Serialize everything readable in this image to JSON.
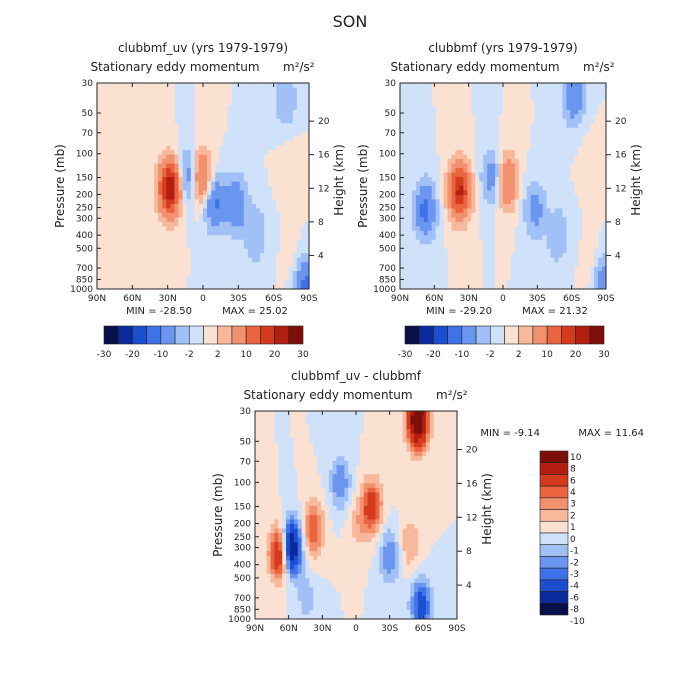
{
  "title": "SON",
  "chart_data": [
    {
      "type": "heatmap",
      "title": "clubbmf_uv (yrs 1979-1979)",
      "subtitle": "Stationary eddy momentum",
      "units": "m²/s²",
      "xlabel": "",
      "ylabel": "Pressure (mb)",
      "ylabel_right": "Height (km)",
      "x_ticks": [
        "90N",
        "60N",
        "30N",
        "0",
        "30S",
        "60S",
        "90S"
      ],
      "y_ticks": [
        "30",
        "50",
        "70",
        "100",
        "150",
        "200",
        "250",
        "300",
        "400",
        "500",
        "700",
        "850",
        "1000"
      ],
      "y_right_ticks": [
        "20",
        "16",
        "12",
        "8",
        "4"
      ],
      "min": -28.5,
      "max": 25.02,
      "min_label": "MIN = -28.50",
      "max_label": "MAX = 25.02",
      "colorbar_levels": [
        -30,
        -25,
        -20,
        -15,
        -10,
        -5,
        -2,
        0,
        2,
        5,
        10,
        15,
        20,
        25,
        30
      ],
      "colorbar_tick_labels": [
        "-30",
        "-20",
        "-10",
        "-2",
        "2",
        "10",
        "20",
        "30"
      ],
      "features": [
        {
          "lat": 28,
          "p": 180,
          "value": 25
        },
        {
          "lat": 1,
          "p": 150,
          "value": 12
        },
        {
          "lat": 13,
          "p": 150,
          "value": -9
        },
        {
          "lat": -10,
          "p": 230,
          "value": -11
        },
        {
          "lat": -28,
          "p": 240,
          "value": -10
        },
        {
          "lat": -45,
          "p": 400,
          "value": -5
        },
        {
          "lat": -70,
          "p": 40,
          "value": -5
        },
        {
          "lat": -76,
          "p": 140,
          "value": 2
        },
        {
          "lat": -82,
          "p": 780,
          "value": 4
        },
        {
          "lat": -86,
          "p": 900,
          "value": -14
        },
        {
          "lat": 60,
          "p": 500,
          "value": 1
        }
      ]
    },
    {
      "type": "heatmap",
      "title": "clubbmf (yrs 1979-1979)",
      "subtitle": "Stationary eddy momentum",
      "units": "m²/s²",
      "xlabel": "",
      "ylabel": "Pressure (mb)",
      "ylabel_right": "Height (km)",
      "x_ticks": [
        "90N",
        "60N",
        "30N",
        "0",
        "30S",
        "60S",
        "90S"
      ],
      "y_ticks": [
        "30",
        "50",
        "70",
        "100",
        "150",
        "200",
        "250",
        "300",
        "400",
        "500",
        "700",
        "850",
        "1000"
      ],
      "y_right_ticks": [
        "20",
        "16",
        "12",
        "8",
        "4"
      ],
      "min": -29.2,
      "max": 21.32,
      "min_label": "MIN = -29.20",
      "max_label": "MAX = 21.32",
      "colorbar_levels": [
        -30,
        -25,
        -20,
        -15,
        -10,
        -5,
        -2,
        0,
        2,
        5,
        10,
        15,
        20,
        25,
        30
      ],
      "colorbar_tick_labels": [
        "-30",
        "-20",
        "-10",
        "-2",
        "2",
        "10",
        "20",
        "30"
      ],
      "features": [
        {
          "lat": 38,
          "p": 190,
          "value": 21
        },
        {
          "lat": -3,
          "p": 160,
          "value": 11
        },
        {
          "lat": 9,
          "p": 150,
          "value": -8
        },
        {
          "lat": 68,
          "p": 260,
          "value": -12
        },
        {
          "lat": -28,
          "p": 260,
          "value": -7
        },
        {
          "lat": -48,
          "p": 400,
          "value": -5
        },
        {
          "lat": -62,
          "p": 38,
          "value": -9
        },
        {
          "lat": -80,
          "p": 120,
          "value": 2
        },
        {
          "lat": -82,
          "p": 800,
          "value": 5
        },
        {
          "lat": -86,
          "p": 900,
          "value": -12
        }
      ]
    },
    {
      "type": "heatmap",
      "title": "clubbmf_uv - clubbmf",
      "subtitle": "Stationary eddy momentum",
      "units": "m²/s²",
      "xlabel": "",
      "ylabel": "Pressure (mb)",
      "ylabel_right": "Height (km)",
      "x_ticks": [
        "90N",
        "60N",
        "30N",
        "0",
        "30S",
        "60S",
        "90S"
      ],
      "y_ticks": [
        "30",
        "50",
        "70",
        "100",
        "150",
        "200",
        "250",
        "300",
        "400",
        "500",
        "700",
        "850",
        "1000"
      ],
      "y_right_ticks": [
        "20",
        "16",
        "12",
        "8",
        "4"
      ],
      "min": -9.14,
      "max": 11.64,
      "min_label": "MIN =   -9.14",
      "max_label": "MAX =   11.64",
      "colorbar_levels": [
        -10,
        -8,
        -6,
        -4,
        -3,
        -2,
        -1,
        0,
        1,
        2,
        3,
        4,
        6,
        8,
        10
      ],
      "colorbar_tick_labels": [
        "10",
        "8",
        "6",
        "4",
        "3",
        "2",
        "1",
        "0",
        "-1",
        "-2",
        "-3",
        "-4",
        "-6",
        "-8",
        "-10"
      ],
      "features": [
        {
          "lat": 68,
          "p": 330,
          "value": 7
        },
        {
          "lat": 58,
          "p": 300,
          "value": -9
        },
        {
          "lat": 38,
          "p": 220,
          "value": 4
        },
        {
          "lat": 14,
          "p": 100,
          "value": -3
        },
        {
          "lat": -14,
          "p": 150,
          "value": 5
        },
        {
          "lat": -2,
          "p": 200,
          "value": 1.5
        },
        {
          "lat": -30,
          "p": 350,
          "value": -3
        },
        {
          "lat": -55,
          "p": 35,
          "value": 11
        },
        {
          "lat": -48,
          "p": 280,
          "value": 2
        },
        {
          "lat": -58,
          "p": 800,
          "value": -5
        },
        {
          "lat": 44,
          "p": 700,
          "value": -1.5
        }
      ]
    }
  ]
}
